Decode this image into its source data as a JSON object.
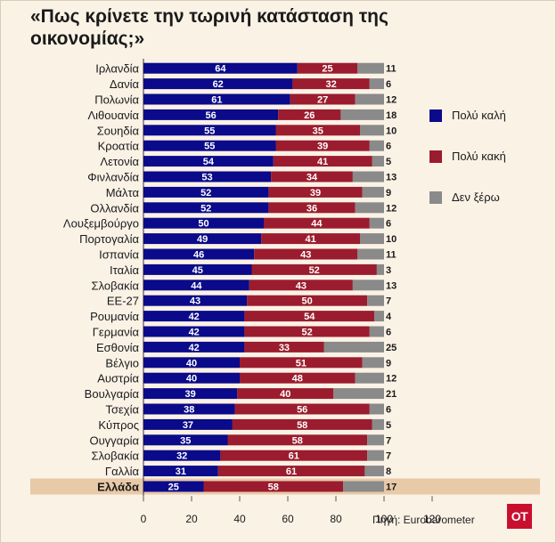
{
  "title": "«Πως κρίνετε την τωρινή κατάσταση της οικονομίας;»",
  "source": "Πηγή: Eurobarometer",
  "logo_text": "ΟΤ",
  "colors": {
    "good": "#0a0a8a",
    "bad": "#9b1c2e",
    "dontknow": "#8a8a8a",
    "highlight_band": "#e8c9a8"
  },
  "chart_data": {
    "type": "bar",
    "orientation": "horizontal",
    "stacked": true,
    "title": "«Πως κρίνετε την τωρινή κατάσταση της οικονομίας;»",
    "xlim": [
      0,
      120
    ],
    "xticks": [
      "0",
      "20",
      "40",
      "60",
      "80",
      "100",
      "120"
    ],
    "highlighted_category": "Ελλάδα",
    "categories": [
      "Ιρλανδία",
      "Δανία",
      "Πολωνία",
      "Λιθουανία",
      "Σουηδία",
      "Κροατία",
      "Λετονία",
      "Φινλανδία",
      "Μάλτα",
      "Ολλανδία",
      "Λουξεμβούργο",
      "Πορτογαλία",
      "Ισπανία",
      "Ιταλία",
      "Σλοβακία",
      "ΕΕ-27",
      "Ρουμανία",
      "Γερμανία",
      "Εσθονία",
      "Βέλγιο",
      "Αυστρία",
      "Βουλγαρία",
      "Τσεχία",
      "Κύπρος",
      "Ουγγαρία",
      "Σλοβακία",
      "Γαλλία",
      "Ελλάδα"
    ],
    "series": [
      {
        "name": "Πολύ καλή",
        "color": "#0a0a8a",
        "values": [
          64,
          62,
          61,
          56,
          55,
          55,
          54,
          53,
          52,
          52,
          50,
          49,
          46,
          45,
          44,
          43,
          42,
          42,
          42,
          40,
          40,
          39,
          38,
          37,
          35,
          32,
          31,
          25
        ]
      },
      {
        "name": "Πολύ κακή",
        "color": "#9b1c2e",
        "values": [
          25,
          32,
          27,
          26,
          35,
          39,
          41,
          34,
          39,
          36,
          44,
          41,
          43,
          52,
          43,
          50,
          54,
          52,
          33,
          51,
          48,
          40,
          56,
          58,
          58,
          61,
          61,
          58
        ]
      },
      {
        "name": "Δεν ξέρω",
        "color": "#8a8a8a",
        "values": [
          11,
          6,
          12,
          18,
          10,
          6,
          5,
          13,
          9,
          12,
          6,
          10,
          11,
          3,
          13,
          7,
          4,
          6,
          25,
          9,
          12,
          21,
          6,
          5,
          7,
          7,
          8,
          17
        ]
      }
    ]
  }
}
